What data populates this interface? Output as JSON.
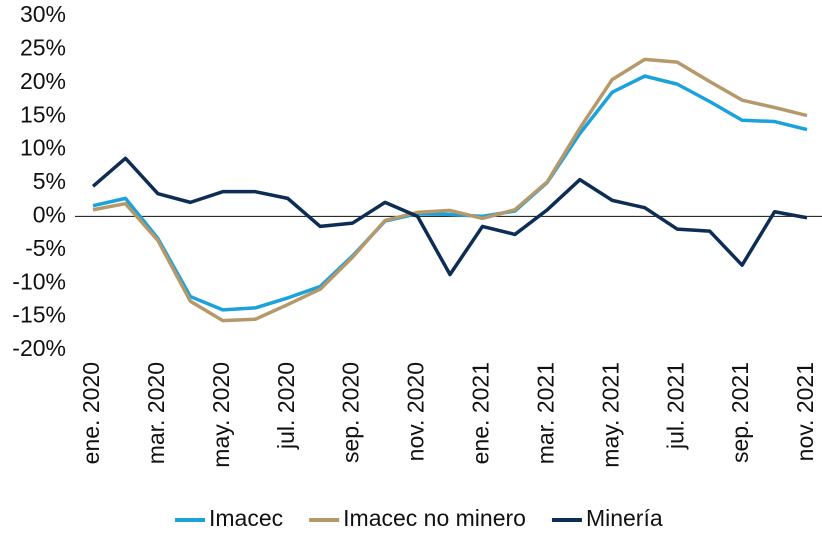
{
  "chart_data": {
    "type": "line",
    "categories": [
      "ene. 2020",
      null,
      "mar. 2020",
      null,
      "may. 2020",
      null,
      "jul. 2020",
      null,
      "sep. 2020",
      null,
      "nov. 2020",
      null,
      "ene. 2021",
      null,
      "mar. 2021",
      null,
      "may. 2021",
      null,
      "jul. 2021",
      null,
      "sep. 2021",
      null,
      "nov. 2021"
    ],
    "series": [
      {
        "name": "Imacec",
        "color": "#1ba1dc",
        "values": [
          1.6,
          2.7,
          -3.3,
          -12.0,
          -14.0,
          -13.7,
          -12.2,
          -10.5,
          -5.9,
          -0.7,
          0.4,
          0.3,
          0.0,
          0.8,
          5.1,
          12.4,
          18.6,
          21.0,
          19.8,
          17.2,
          14.4,
          14.2,
          13.0
        ]
      },
      {
        "name": "Imacec no minero",
        "color": "#b5996b",
        "values": [
          1.0,
          1.9,
          -3.6,
          -12.7,
          -15.6,
          -15.4,
          -13.2,
          -10.9,
          -6.1,
          -0.6,
          0.6,
          0.9,
          -0.3,
          1.0,
          5.2,
          13.2,
          20.5,
          23.5,
          23.1,
          20.2,
          17.4,
          16.3,
          15.1
        ]
      },
      {
        "name": "Minería",
        "color": "#0d2d54",
        "values": [
          4.5,
          8.7,
          3.4,
          2.1,
          3.7,
          3.7,
          2.7,
          -1.5,
          -1.0,
          2.1,
          0.0,
          -8.7,
          -1.5,
          -2.7,
          1.0,
          5.5,
          2.4,
          1.3,
          -1.9,
          -2.2,
          -7.3,
          0.7,
          -0.2
        ]
      }
    ],
    "ylim": [
      -20,
      30
    ],
    "yticks": [
      {
        "value": -20,
        "label": "-20%"
      },
      {
        "value": -15,
        "label": "-15%"
      },
      {
        "value": -10,
        "label": "-10%"
      },
      {
        "value": -5,
        "label": "-5%"
      },
      {
        "value": 0,
        "label": "0%"
      },
      {
        "value": 5,
        "label": "5%"
      },
      {
        "value": 10,
        "label": "10%"
      },
      {
        "value": 15,
        "label": "15%"
      },
      {
        "value": 20,
        "label": "20%"
      },
      {
        "value": 25,
        "label": "25%"
      },
      {
        "value": 30,
        "label": "30%"
      }
    ],
    "grid": false
  }
}
